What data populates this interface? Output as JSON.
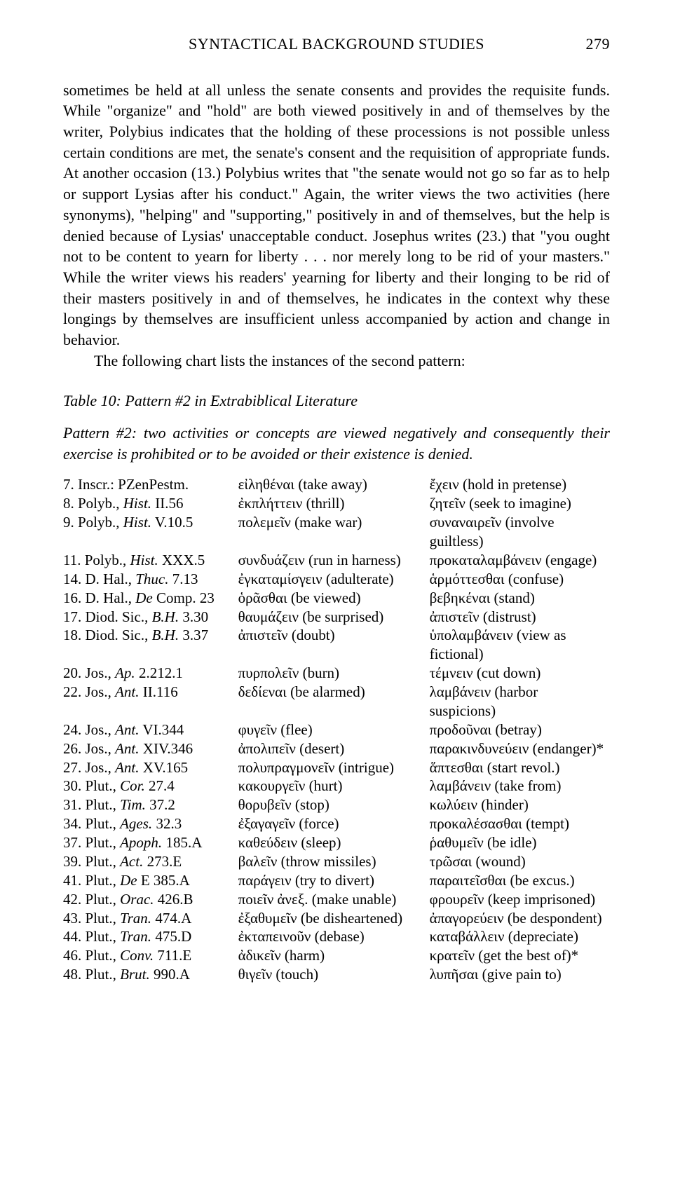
{
  "header": {
    "title": "SYNTACTICAL BACKGROUND STUDIES",
    "page_number": "279"
  },
  "paragraphs": {
    "p1": "sometimes be held at all unless the senate consents and provides the requisite funds. While \"organize\" and \"hold\" are both viewed positively in and of themselves by the writer, Polybius indicates that the holding of these processions is not possible unless certain conditions are met, the senate's consent and the requisition of appropriate funds. At another occasion (13.) Polybius writes that \"the senate would not go so far as to help or support Lysias after his conduct.\" Again, the writer views the two activities (here synonyms), \"helping\" and \"supporting,\" positively in and of themselves, but the help is denied because of Lysias' unacceptable conduct. Josephus writes (23.) that \"you ought not to be content to yearn for liberty . . . nor merely long to be rid of your masters.\" While the writer views his readers' yearning for liberty and their longing to be rid of their masters positively in and of themselves, he indicates in the context why these longings by themselves are insufficient unless accompanied by action and change in behavior.",
    "p2": "The following chart lists the instances of the second pattern:"
  },
  "table": {
    "title": "Table 10: Pattern #2 in Extrabiblical Literature",
    "subtitle": "Pattern #2: two activities or concepts are viewed negatively and consequently their exercise is prohibited or to be avoided or their existence is denied.",
    "rows": [
      {
        "c1": " 7. Inscr.: PZenPestm.",
        "c2": "εἰληθέναι (take away)",
        "c3": "ἔχειν (hold in pretense)"
      },
      {
        "c1": " 8. Polyb., Hist. II.56",
        "c2": "ἐκπλήττειν (thrill)",
        "c3": "ζητεῖν (seek to imagine)"
      },
      {
        "c1": " 9. Polyb., Hist. V.10.5",
        "c2": "πολεμεῖν (make war)",
        "c3": "συναναιρεῖν (involve guiltless)"
      },
      {
        "c1": "11. Polyb., Hist. XXX.5",
        "c2": "συνδυάζειν (run in harness)",
        "c3": "προκαταλαμβάνειν (engage)"
      },
      {
        "c1": "14. D. Hal., Thuc. 7.13",
        "c2": "ἐγκαταμίσγειν (adulterate)",
        "c3": "ἁρμόττεσθαι (confuse)"
      },
      {
        "c1": "16. D. Hal., De Comp. 23",
        "c2": "ὁρᾶσθαι (be viewed)",
        "c3": "βεβηκέναι (stand)"
      },
      {
        "c1": "17. Diod. Sic., B.H. 3.30",
        "c2": "θαυμάζειν (be surprised)",
        "c3": "ἀπιστεῖν (distrust)"
      },
      {
        "c1": "18. Diod. Sic., B.H. 3.37",
        "c2": "ἀπιστεῖν (doubt)",
        "c3": "ὑπολαμβάνειν (view as fictional)"
      },
      {
        "c1": "20. Jos., Ap. 2.212.1",
        "c2": "πυρπολεῖν (burn)",
        "c3": "τέμνειν (cut down)"
      },
      {
        "c1": "22. Jos., Ant. II.116",
        "c2": "δεδίεναι (be alarmed)",
        "c3": "λαμβάνειν (harbor suspicions)"
      },
      {
        "c1": "24. Jos., Ant. VI.344",
        "c2": "φυγεῖν (flee)",
        "c3": "προδοῦναι (betray)"
      },
      {
        "c1": "26. Jos., Ant. XIV.346",
        "c2": "ἀπολιπεῖν (desert)",
        "c3": "παρακινδυνεύειν (endanger)*"
      },
      {
        "c1": "27. Jos., Ant. XV.165",
        "c2": "πολυπραγμονεῖν (intrigue)",
        "c3": "ἅπτεσθαι (start revol.)"
      },
      {
        "c1": "30. Plut., Cor. 27.4",
        "c2": "κακουργεῖν (hurt)",
        "c3": "λαμβάνειν (take from)"
      },
      {
        "c1": "31. Plut., Tim. 37.2",
        "c2": "θορυβεῖν (stop)",
        "c3": "κωλύειν (hinder)"
      },
      {
        "c1": "34. Plut., Ages. 32.3",
        "c2": "ἐξαγαγεῖν (force)",
        "c3": "προκαλέσασθαι (tempt)"
      },
      {
        "c1": "37. Plut., Apoph. 185.A",
        "c2": "καθεύδειν (sleep)",
        "c3": "ῥαθυμεῖν (be idle)"
      },
      {
        "c1": "39. Plut., Act. 273.E",
        "c2": "βαλεῖν (throw missiles)",
        "c3": "τρῶσαι (wound)"
      },
      {
        "c1": "41. Plut., De E 385.A",
        "c2": "παράγειν (try to divert)",
        "c3": "παραιτεῖσθαι (be excus.)"
      },
      {
        "c1": "42. Plut., Orac. 426.B",
        "c2": "ποιεῖν ἀνεξ. (make unable)",
        "c3": "φρουρεῖν (keep imprisoned)"
      },
      {
        "c1": "43. Plut., Tran. 474.A",
        "c2": "ἐξαθυμεῖν (be disheartened)",
        "c3": "ἀπαγορεύειν (be despondent)"
      },
      {
        "c1": "44. Plut., Tran. 475.D",
        "c2": "ἐκταπεινοῦν (debase)",
        "c3": "καταβάλλειν (depreciate)"
      },
      {
        "c1": "46. Plut., Conv. 711.E",
        "c2": "ἀδικεῖν (harm)",
        "c3": "κρατεῖν (get the best of)*"
      },
      {
        "c1": "48. Plut., Brut. 990.A",
        "c2": "θιγεῖν (touch)",
        "c3": "λυπῆσαι (give pain to)"
      }
    ]
  }
}
